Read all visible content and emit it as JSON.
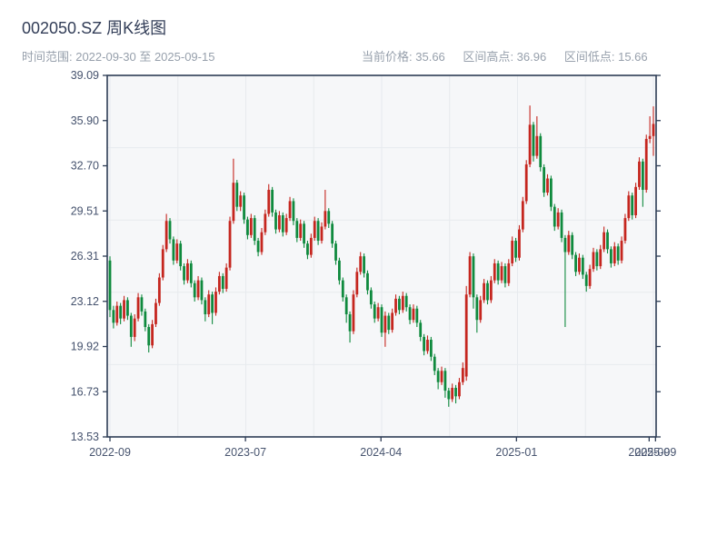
{
  "header": {
    "title": "002050.SZ 周K线图",
    "subtitle": "时间范围: 2022-09-30 至 2025-09-15",
    "stats": [
      {
        "label": "当前价格",
        "value": "35.66"
      },
      {
        "label": "区间高点",
        "value": "36.96"
      },
      {
        "label": "区间低点",
        "value": "15.66"
      }
    ]
  },
  "chart_data": {
    "type": "candlestick",
    "title": "002050.SZ 周K线图",
    "frequency": "weekly",
    "date_start": "2022-09-30",
    "date_end": "2025-09-15",
    "current_price": 35.66,
    "range_high": 36.96,
    "range_low": 15.66,
    "ylim": [
      13.53,
      39.09
    ],
    "y_ticks": [
      "39.09",
      "35.90",
      "32.70",
      "29.51",
      "26.31",
      "23.12",
      "19.92",
      "16.73",
      "13.53"
    ],
    "x_ticks": [
      {
        "label": "2022-09",
        "index": 0
      },
      {
        "label": "2023-07",
        "index": 38.4
      },
      {
        "label": "2024-04",
        "index": 76.8
      },
      {
        "label": "2025-01",
        "index": 115.2
      },
      {
        "label": "2025-09",
        "index": 152.8
      },
      {
        "label": "2025-09",
        "index": 154.6
      }
    ],
    "legend": "none",
    "grid": {
      "horizontal_divisions": 5,
      "vertical_divisions": 8
    },
    "colors": {
      "up": "#c5261f",
      "down": "#0f8a3e",
      "spine": "#2d3c55",
      "grid": "#e7eaee",
      "plot_bg": "#f6f7f9",
      "tick_label": "#46536e"
    },
    "ohlc": [
      [
        26.0,
        26.3,
        22.0,
        22.5
      ],
      [
        22.5,
        22.8,
        21.2,
        21.6
      ],
      [
        21.6,
        23.1,
        21.4,
        22.8
      ],
      [
        22.8,
        23.0,
        21.5,
        21.9
      ],
      [
        21.9,
        23.5,
        21.7,
        23.2
      ],
      [
        23.2,
        23.4,
        21.8,
        22.1
      ],
      [
        22.1,
        22.3,
        19.9,
        20.6
      ],
      [
        20.6,
        22.2,
        20.3,
        21.9
      ],
      [
        21.9,
        23.7,
        21.7,
        23.4
      ],
      [
        23.4,
        23.6,
        22.1,
        22.4
      ],
      [
        22.4,
        22.6,
        21.0,
        21.3
      ],
      [
        21.3,
        21.5,
        19.5,
        20.0
      ],
      [
        20.0,
        21.8,
        19.8,
        21.5
      ],
      [
        21.5,
        23.3,
        21.3,
        23.0
      ],
      [
        23.0,
        25.1,
        22.8,
        24.8
      ],
      [
        24.8,
        27.1,
        24.6,
        26.8
      ],
      [
        26.8,
        29.3,
        26.6,
        28.8
      ],
      [
        28.8,
        29.0,
        27.2,
        27.5
      ],
      [
        27.5,
        27.7,
        25.7,
        26.0
      ],
      [
        26.0,
        27.5,
        25.8,
        27.2
      ],
      [
        27.2,
        27.4,
        25.3,
        25.6
      ],
      [
        25.6,
        25.8,
        24.3,
        24.6
      ],
      [
        24.6,
        26.1,
        24.4,
        25.8
      ],
      [
        25.8,
        26.0,
        24.1,
        24.4
      ],
      [
        24.4,
        24.6,
        23.1,
        23.4
      ],
      [
        23.4,
        24.9,
        23.2,
        24.6
      ],
      [
        24.6,
        24.8,
        22.9,
        23.2
      ],
      [
        23.2,
        23.4,
        21.7,
        22.2
      ],
      [
        22.2,
        23.9,
        22.0,
        23.6
      ],
      [
        23.6,
        23.8,
        21.5,
        22.3
      ],
      [
        22.3,
        24.1,
        22.1,
        23.8
      ],
      [
        23.8,
        25.2,
        23.6,
        24.9
      ],
      [
        24.9,
        25.1,
        23.7,
        24.0
      ],
      [
        24.0,
        25.8,
        23.8,
        25.5
      ],
      [
        25.5,
        29.1,
        25.3,
        28.8
      ],
      [
        28.8,
        33.2,
        28.6,
        31.5
      ],
      [
        31.5,
        31.7,
        29.5,
        29.8
      ],
      [
        29.8,
        30.9,
        29.5,
        30.6
      ],
      [
        30.6,
        30.8,
        28.6,
        28.9
      ],
      [
        28.9,
        29.1,
        27.5,
        27.8
      ],
      [
        27.8,
        29.3,
        27.6,
        29.0
      ],
      [
        29.0,
        29.2,
        27.1,
        27.4
      ],
      [
        27.4,
        27.6,
        26.3,
        26.6
      ],
      [
        26.6,
        28.3,
        26.4,
        28.0
      ],
      [
        28.0,
        29.6,
        27.8,
        29.3
      ],
      [
        29.3,
        31.4,
        29.1,
        31.0
      ],
      [
        31.0,
        31.2,
        29.1,
        29.4
      ],
      [
        29.4,
        29.6,
        27.9,
        28.2
      ],
      [
        28.2,
        29.5,
        28.0,
        29.2
      ],
      [
        29.2,
        29.4,
        27.7,
        28.0
      ],
      [
        28.0,
        29.3,
        27.8,
        29.0
      ],
      [
        29.0,
        30.5,
        28.8,
        30.2
      ],
      [
        30.2,
        30.4,
        28.5,
        28.8
      ],
      [
        28.8,
        29.0,
        27.3,
        27.6
      ],
      [
        27.6,
        28.9,
        27.4,
        28.6
      ],
      [
        28.6,
        28.8,
        26.9,
        27.2
      ],
      [
        27.2,
        27.4,
        26.1,
        26.4
      ],
      [
        26.4,
        27.9,
        26.2,
        27.6
      ],
      [
        27.6,
        29.1,
        27.4,
        28.8
      ],
      [
        28.8,
        29.0,
        27.1,
        27.4
      ],
      [
        27.4,
        28.7,
        27.2,
        28.4
      ],
      [
        28.4,
        31.0,
        28.2,
        29.5
      ],
      [
        29.5,
        29.7,
        28.3,
        28.6
      ],
      [
        28.6,
        28.8,
        26.9,
        27.2
      ],
      [
        27.2,
        27.4,
        25.7,
        26.0
      ],
      [
        26.0,
        26.2,
        24.3,
        24.6
      ],
      [
        24.6,
        24.8,
        23.1,
        23.4
      ],
      [
        23.4,
        23.6,
        21.6,
        22.2
      ],
      [
        22.2,
        22.4,
        20.2,
        21.0
      ],
      [
        21.0,
        23.9,
        20.8,
        23.6
      ],
      [
        23.6,
        25.5,
        23.4,
        25.2
      ],
      [
        25.2,
        26.6,
        25.0,
        26.3
      ],
      [
        26.3,
        26.5,
        24.8,
        25.1
      ],
      [
        25.1,
        25.3,
        23.6,
        23.9
      ],
      [
        23.9,
        24.1,
        22.6,
        22.9
      ],
      [
        22.9,
        23.1,
        21.6,
        21.9
      ],
      [
        21.9,
        23.0,
        21.7,
        22.7
      ],
      [
        22.7,
        22.9,
        20.6,
        20.9
      ],
      [
        20.9,
        22.4,
        19.9,
        22.1
      ],
      [
        22.1,
        22.3,
        20.8,
        21.1
      ],
      [
        21.1,
        22.6,
        20.9,
        22.3
      ],
      [
        22.3,
        23.6,
        22.1,
        23.3
      ],
      [
        23.3,
        23.5,
        22.2,
        22.5
      ],
      [
        22.5,
        23.8,
        22.3,
        23.5
      ],
      [
        23.5,
        23.7,
        22.4,
        22.7
      ],
      [
        22.7,
        22.9,
        21.5,
        21.8
      ],
      [
        21.8,
        22.9,
        21.6,
        22.6
      ],
      [
        22.6,
        22.8,
        21.3,
        21.6
      ],
      [
        21.6,
        21.8,
        20.3,
        20.6
      ],
      [
        20.6,
        20.8,
        19.3,
        19.6
      ],
      [
        19.6,
        20.7,
        19.4,
        20.4
      ],
      [
        20.4,
        20.6,
        18.9,
        19.2
      ],
      [
        19.2,
        19.4,
        17.9,
        18.2
      ],
      [
        18.2,
        18.4,
        16.9,
        17.4
      ],
      [
        17.4,
        18.5,
        17.2,
        18.2
      ],
      [
        18.2,
        18.4,
        16.3,
        16.8
      ],
      [
        16.8,
        17.0,
        15.66,
        16.2
      ],
      [
        16.2,
        17.3,
        16.0,
        17.0
      ],
      [
        17.0,
        17.2,
        15.9,
        16.4
      ],
      [
        16.4,
        17.7,
        16.2,
        17.4
      ],
      [
        17.4,
        18.8,
        17.2,
        18.4
      ],
      [
        17.8,
        24.2,
        17.5,
        23.6
      ],
      [
        23.6,
        26.6,
        23.4,
        26.3
      ],
      [
        26.3,
        26.5,
        22.6,
        23.4
      ],
      [
        23.4,
        23.6,
        20.9,
        21.8
      ],
      [
        21.8,
        23.5,
        21.6,
        23.2
      ],
      [
        23.2,
        24.7,
        23.0,
        24.4
      ],
      [
        24.4,
        24.6,
        22.9,
        23.2
      ],
      [
        23.2,
        24.9,
        23.0,
        24.6
      ],
      [
        24.6,
        26.1,
        24.4,
        25.8
      ],
      [
        25.8,
        26.0,
        24.3,
        24.6
      ],
      [
        24.6,
        25.9,
        24.4,
        25.6
      ],
      [
        25.6,
        25.8,
        24.1,
        24.4
      ],
      [
        24.4,
        26.1,
        24.2,
        25.8
      ],
      [
        25.8,
        27.7,
        25.6,
        27.4
      ],
      [
        27.4,
        27.6,
        25.9,
        26.2
      ],
      [
        26.2,
        28.5,
        26.0,
        28.2
      ],
      [
        28.2,
        30.5,
        28.0,
        30.2
      ],
      [
        30.2,
        33.1,
        30.0,
        32.8
      ],
      [
        32.8,
        36.96,
        32.6,
        35.6
      ],
      [
        35.6,
        35.8,
        33.0,
        33.4
      ],
      [
        33.4,
        36.2,
        33.2,
        34.8
      ],
      [
        34.8,
        35.0,
        32.3,
        32.6
      ],
      [
        32.6,
        32.8,
        30.5,
        30.8
      ],
      [
        30.8,
        32.1,
        30.6,
        31.8
      ],
      [
        31.8,
        32.0,
        29.5,
        29.8
      ],
      [
        29.8,
        30.0,
        28.1,
        28.4
      ],
      [
        28.4,
        29.7,
        28.2,
        29.4
      ],
      [
        29.4,
        29.6,
        27.3,
        27.6
      ],
      [
        27.6,
        27.8,
        21.3,
        26.6
      ],
      [
        26.6,
        28.1,
        26.4,
        27.8
      ],
      [
        27.8,
        28.0,
        26.1,
        26.4
      ],
      [
        26.4,
        26.6,
        24.9,
        25.2
      ],
      [
        25.2,
        26.5,
        25.0,
        26.2
      ],
      [
        26.2,
        26.4,
        24.7,
        25.0
      ],
      [
        25.0,
        25.2,
        23.8,
        24.2
      ],
      [
        24.2,
        25.7,
        24.0,
        25.4
      ],
      [
        25.4,
        26.9,
        25.2,
        26.6
      ],
      [
        26.6,
        26.8,
        25.3,
        25.6
      ],
      [
        25.6,
        27.1,
        25.4,
        26.8
      ],
      [
        26.8,
        28.4,
        26.6,
        28.0
      ],
      [
        28.0,
        28.2,
        26.5,
        26.8
      ],
      [
        26.8,
        27.0,
        25.5,
        25.8
      ],
      [
        25.8,
        27.3,
        25.6,
        27.0
      ],
      [
        27.0,
        27.2,
        25.7,
        26.0
      ],
      [
        26.0,
        27.7,
        25.8,
        27.4
      ],
      [
        27.4,
        29.3,
        27.2,
        29.0
      ],
      [
        29.0,
        30.9,
        28.8,
        30.6
      ],
      [
        30.6,
        30.8,
        28.9,
        29.2
      ],
      [
        29.2,
        31.5,
        29.0,
        31.2
      ],
      [
        31.2,
        33.3,
        31.0,
        33.0
      ],
      [
        33.0,
        33.2,
        29.8,
        31.0
      ],
      [
        31.0,
        34.9,
        30.8,
        34.6
      ],
      [
        34.6,
        36.2,
        34.3,
        34.8
      ],
      [
        34.8,
        36.9,
        33.4,
        35.66
      ]
    ]
  }
}
